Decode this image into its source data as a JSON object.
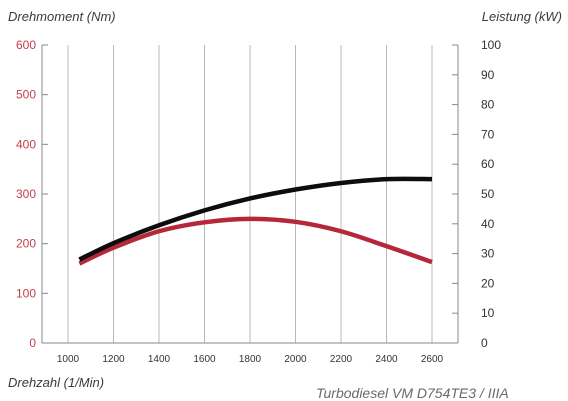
{
  "labels": {
    "y_left": "Drehmoment (Nm)",
    "y_right": "Leistung (kW)",
    "x": "Drehzahl (1/Min)",
    "subtitle": "Turbodiesel VM D754TE3 / IIIA"
  },
  "colors": {
    "left_tick": "#c0404a",
    "right_tick": "#333333",
    "grid": "#b8b8b8",
    "axis": "#888888",
    "torque": "#b5283a",
    "power": "#0d0d0d"
  },
  "chart_data": {
    "type": "line",
    "title": "",
    "xlabel": "Drehzahl (1/Min)",
    "ylabel": "Drehmoment (Nm)",
    "ylabel_right": "Leistung (kW)",
    "xlim": [
      1000,
      2600
    ],
    "ylim": [
      0,
      600
    ],
    "ylim_right": [
      0,
      100
    ],
    "x_ticks": [
      1000,
      1200,
      1400,
      1600,
      1800,
      2000,
      2200,
      2400,
      2600
    ],
    "y_ticks_left": [
      0,
      100,
      200,
      300,
      400,
      500,
      600
    ],
    "y_ticks_right": [
      0,
      10,
      20,
      30,
      40,
      50,
      60,
      70,
      80,
      90,
      100
    ],
    "grid": "vertical",
    "series": [
      {
        "axis": "left",
        "color": "#b5283a",
        "x": [
          1050,
          1200,
          1400,
          1600,
          1800,
          2000,
          2200,
          2400,
          2600
        ],
        "y": [
          160,
          192,
          225,
          243,
          250,
          244,
          225,
          195,
          163
        ]
      },
      {
        "axis": "right",
        "color": "#0d0d0d",
        "x": [
          1050,
          1200,
          1400,
          1600,
          1800,
          2000,
          2200,
          2400,
          2600
        ],
        "y": [
          28,
          33.5,
          39.5,
          44.5,
          48.5,
          51.5,
          53.7,
          55,
          55
        ]
      }
    ]
  }
}
